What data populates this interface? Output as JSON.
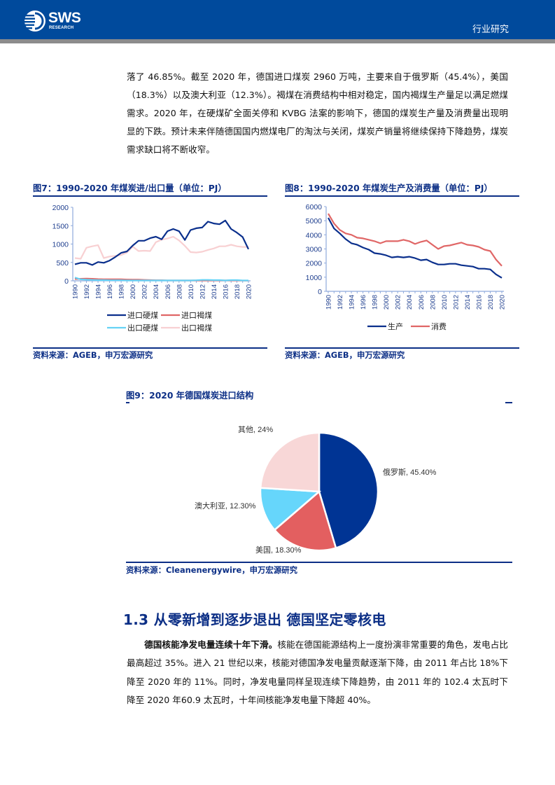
{
  "header": {
    "logo_text": "SWS",
    "logo_subtext": "RESEARCH",
    "category": "行业研究",
    "colors": {
      "brand_blue": "#004a9c",
      "stripe_gray": "#8c8c8c"
    }
  },
  "intro_paragraph": "落了 46.85%。截至 2020 年，德国进口煤炭 2960 万吨，主要来自于俄罗斯（45.4%），美国（18.3%）以及澳大利亚（12.3%）。褐煤在消费结构中相对稳定，国内褐煤生产量足以满足燃煤需求。2020 年，在硬煤矿全面关停和 KVBG 法案的影响下，德国的煤炭生产量及消费量出现明显的下跌。预计未来伴随德国国内燃煤电厂的淘汰与关闭，煤炭产销量将继续保持下降趋势，煤炭需求缺口将不断收窄。",
  "figure7": {
    "title": "图7：1990-2020 年煤炭进/出口量（单位：PJ）",
    "source": "资料来源：AGEB，申万宏源研究"
  },
  "figure8": {
    "title": "图8：1990-2020 年煤炭生产及消费量（单位：PJ）",
    "source": "资料来源：AGEB，申万宏源研究"
  },
  "figure9": {
    "title": "图9：2020 年德国煤炭进口结构",
    "source": "资料来源：Cleanenergywire，申万宏源研究"
  },
  "section": {
    "title": "1.3  从零新增到逐步退出  德国坚定零核电",
    "lead": "德国核能净发电量连续十年下滑。",
    "body": "核能在德国能源结构上一度扮演非常重要的角色，发电占比最高超过 35%。进入 21 世纪以来，核能对德国净发电量贡献逐渐下降，由 2011 年占比 18%下降至 2020 年的 11%。同时，净发电量同样呈现连续下降趋势，由 2011 年的 102.4 太瓦时下降至 2020 年60.9 太瓦时，十年间核能净发电量下降超 40%。"
  },
  "chart_data": [
    {
      "type": "line",
      "title": "图7：1990-2020 年煤炭进/出口量（单位：PJ）",
      "xlabel": "",
      "ylabel": "PJ",
      "ylim": [
        0,
        2000
      ],
      "yticks": [
        0,
        500,
        1000,
        1500,
        2000
      ],
      "x": [
        1990,
        1991,
        1992,
        1993,
        1994,
        1995,
        1996,
        1997,
        1998,
        1999,
        2000,
        2001,
        2002,
        2003,
        2004,
        2005,
        2006,
        2007,
        2008,
        2009,
        2010,
        2011,
        2012,
        2013,
        2014,
        2015,
        2016,
        2017,
        2018,
        2019,
        2020
      ],
      "xtick_labels": [
        "1990",
        "1992",
        "1994",
        "1996",
        "1998",
        "2000",
        "2002",
        "2004",
        "2006",
        "2008",
        "2010",
        "2012",
        "2014",
        "2016",
        "2018",
        "2020"
      ],
      "grid": false,
      "legend_position": "bottom",
      "series": [
        {
          "name": "进口硬煤",
          "color": "#0a2f8c",
          "values": [
            450,
            490,
            490,
            430,
            510,
            490,
            550,
            650,
            760,
            800,
            960,
            1090,
            1090,
            1160,
            1200,
            1130,
            1350,
            1410,
            1350,
            1110,
            1380,
            1430,
            1450,
            1610,
            1560,
            1540,
            1640,
            1410,
            1310,
            1190,
            860
          ]
        },
        {
          "name": "进口褐煤",
          "color": "#e06666",
          "values": [
            50,
            55,
            60,
            55,
            45,
            40,
            40,
            40,
            40,
            35,
            30,
            30,
            25,
            20,
            15,
            15,
            10,
            10,
            10,
            10,
            10,
            10,
            10,
            10,
            10,
            10,
            10,
            10,
            10,
            5,
            5
          ]
        },
        {
          "name": "出口硬煤",
          "color": "#66d2f5",
          "values": [
            90,
            40,
            30,
            25,
            20,
            20,
            15,
            15,
            15,
            10,
            10,
            10,
            10,
            10,
            10,
            10,
            10,
            10,
            10,
            10,
            10,
            15,
            25,
            25,
            20,
            20,
            10,
            20,
            20,
            10,
            10
          ]
        },
        {
          "name": "出口褐煤",
          "color": "#f8d0d2",
          "values": [
            620,
            600,
            900,
            940,
            970,
            620,
            660,
            680,
            700,
            770,
            930,
            810,
            820,
            810,
            1050,
            1120,
            1150,
            1200,
            1100,
            950,
            780,
            770,
            790,
            840,
            880,
            940,
            940,
            980,
            940,
            920,
            920
          ]
        }
      ]
    },
    {
      "type": "line",
      "title": "图8：1990-2020 年煤炭生产及消费量（单位：PJ）",
      "xlabel": "",
      "ylabel": "PJ",
      "ylim": [
        0,
        6000
      ],
      "yticks": [
        0,
        1000,
        2000,
        3000,
        4000,
        5000,
        6000
      ],
      "x": [
        1990,
        1991,
        1992,
        1993,
        1994,
        1995,
        1996,
        1997,
        1998,
        1999,
        2000,
        2001,
        2002,
        2003,
        2004,
        2005,
        2006,
        2007,
        2008,
        2009,
        2010,
        2011,
        2012,
        2013,
        2014,
        2015,
        2016,
        2017,
        2018,
        2019,
        2020
      ],
      "xtick_labels": [
        "1990",
        "1992",
        "1994",
        "1996",
        "1998",
        "2000",
        "2002",
        "2004",
        "2006",
        "2008",
        "2010",
        "2012",
        "2014",
        "2016",
        "2018",
        "2020"
      ],
      "grid": false,
      "legend_position": "bottom",
      "series": [
        {
          "name": "生产",
          "color": "#0a2f8c",
          "values": [
            5200,
            4450,
            4100,
            3700,
            3400,
            3300,
            3100,
            2950,
            2700,
            2650,
            2550,
            2400,
            2450,
            2400,
            2450,
            2350,
            2200,
            2250,
            2050,
            1900,
            1900,
            1950,
            1950,
            1850,
            1800,
            1750,
            1600,
            1600,
            1550,
            1200,
            950
          ]
        },
        {
          "name": "消费",
          "color": "#e06666",
          "values": [
            5500,
            4800,
            4350,
            4100,
            4000,
            3800,
            3750,
            3650,
            3550,
            3400,
            3550,
            3550,
            3550,
            3650,
            3550,
            3350,
            3500,
            3600,
            3300,
            3000,
            3200,
            3250,
            3350,
            3450,
            3300,
            3250,
            3150,
            2950,
            2850,
            2250,
            1800
          ]
        }
      ]
    },
    {
      "type": "pie",
      "title": "图9：2020 年德国煤炭进口结构",
      "categories": [
        "俄罗斯",
        "美国",
        "澳大利亚",
        "其他"
      ],
      "values": [
        45.4,
        18.3,
        12.3,
        24
      ],
      "labels": [
        "俄罗斯, 45.40%",
        "美国, 18.30%",
        "澳大利亚, 12.30%",
        "其他, 24%"
      ],
      "colors": [
        "#003494",
        "#e35f60",
        "#66d6fb",
        "#f8d7d7"
      ]
    }
  ]
}
